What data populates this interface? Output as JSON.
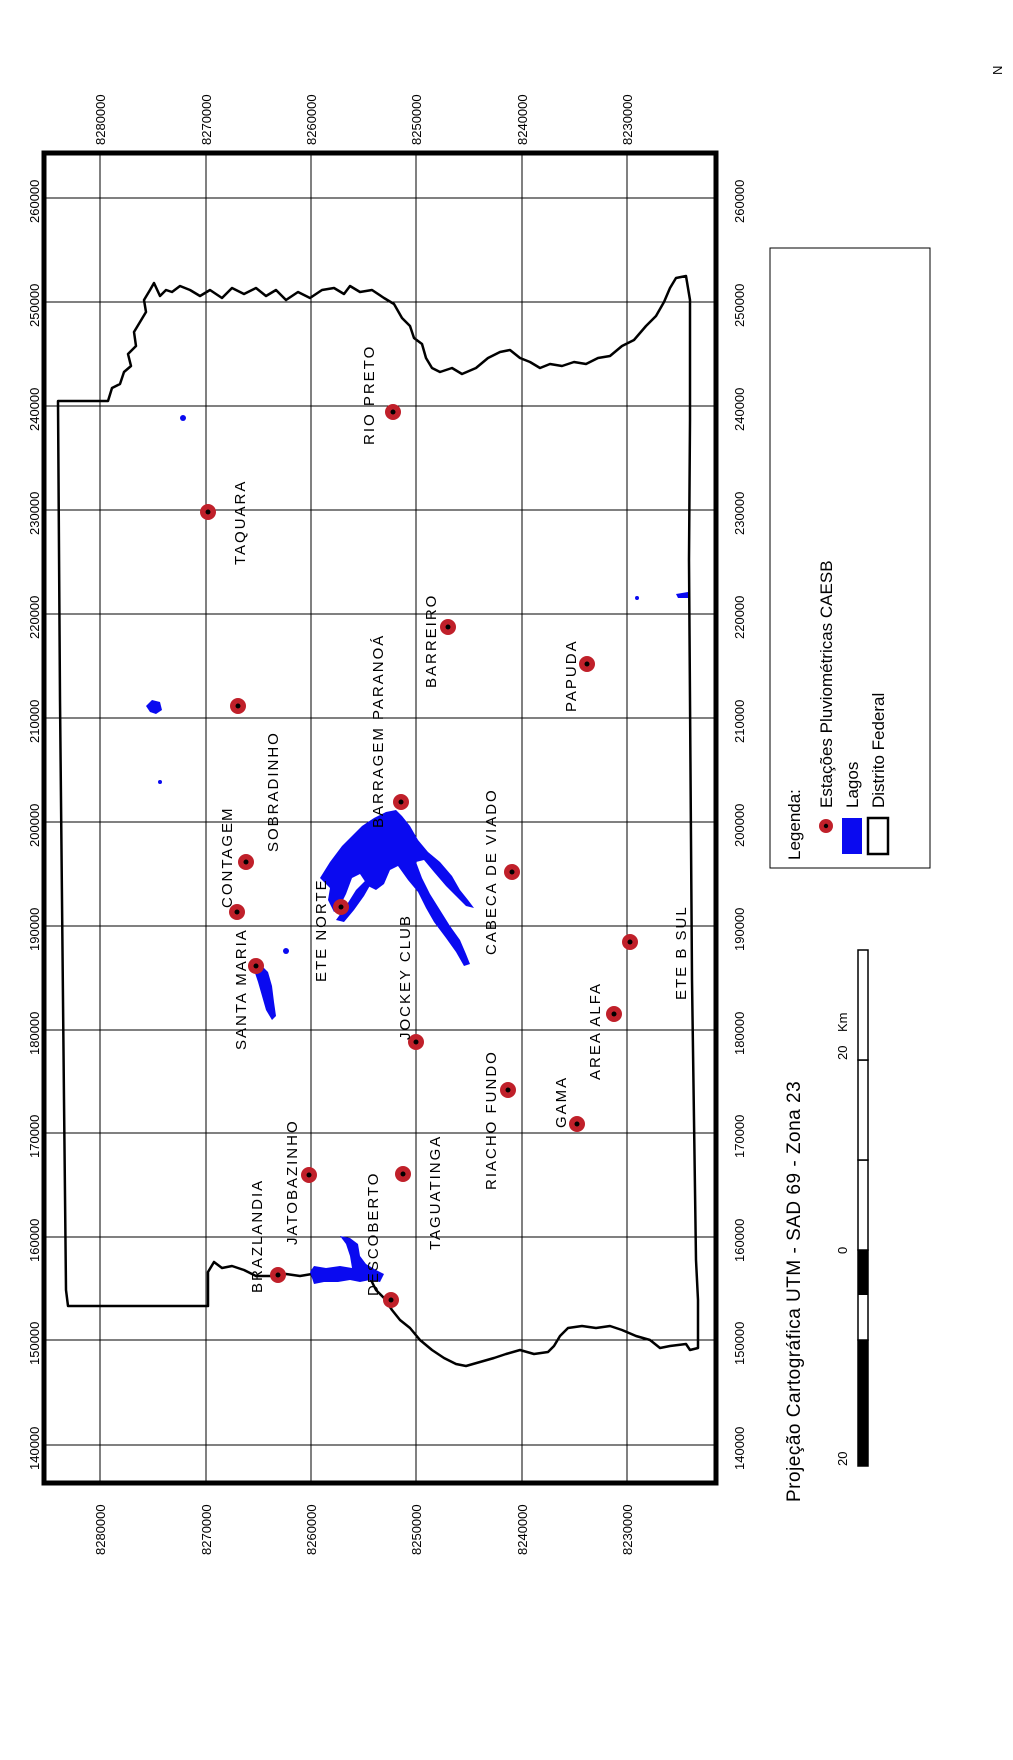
{
  "map": {
    "projection_text": "Projeção Cartográfica UTM - SAD 69 - Zona 23",
    "easting_ticks": [
      "140000",
      "150000",
      "160000",
      "170000",
      "180000",
      "190000",
      "200000",
      "210000",
      "220000",
      "230000",
      "240000",
      "250000",
      "260000"
    ],
    "northing_ticks": [
      "8230000",
      "8240000",
      "8250000",
      "8260000",
      "8270000",
      "8280000"
    ],
    "north_arrow_label": "N"
  },
  "legend": {
    "title": "Legenda:",
    "items": [
      {
        "label": "Estações Pluviométricas CAESB",
        "symbol": "station"
      },
      {
        "label": "Lagos",
        "symbol": "lake"
      },
      {
        "label": "Distrito Federal",
        "symbol": "boundary"
      }
    ]
  },
  "scale_bar": {
    "labels": [
      "20",
      "0",
      "20"
    ],
    "unit": "Km"
  },
  "colors": {
    "station_fill": "#c0202a",
    "lake_fill": "#0a0af0",
    "boundary": "#000000",
    "grid": "#000000"
  },
  "stations": [
    {
      "name": "BRAZLANDIA"
    },
    {
      "name": "JATOBAZINHO"
    },
    {
      "name": "SANTA MARIA"
    },
    {
      "name": "CONTAGEM"
    },
    {
      "name": "SOBRADINHO"
    },
    {
      "name": "TAQUARA"
    },
    {
      "name": "DESCOBERTO"
    },
    {
      "name": "TAGUATINGA"
    },
    {
      "name": "JOCKEY CLUB"
    },
    {
      "name": "ETE NORTE"
    },
    {
      "name": "BARRAGEM PARANOÁ"
    },
    {
      "name": "RIO PRETO"
    },
    {
      "name": "RIACHO FUNDO"
    },
    {
      "name": "CABECA DE VIADO"
    },
    {
      "name": "BARREIRO"
    },
    {
      "name": "GAMA"
    },
    {
      "name": "AREA ALFA"
    },
    {
      "name": "ETE B SUL"
    },
    {
      "name": "PAPUDA"
    }
  ]
}
